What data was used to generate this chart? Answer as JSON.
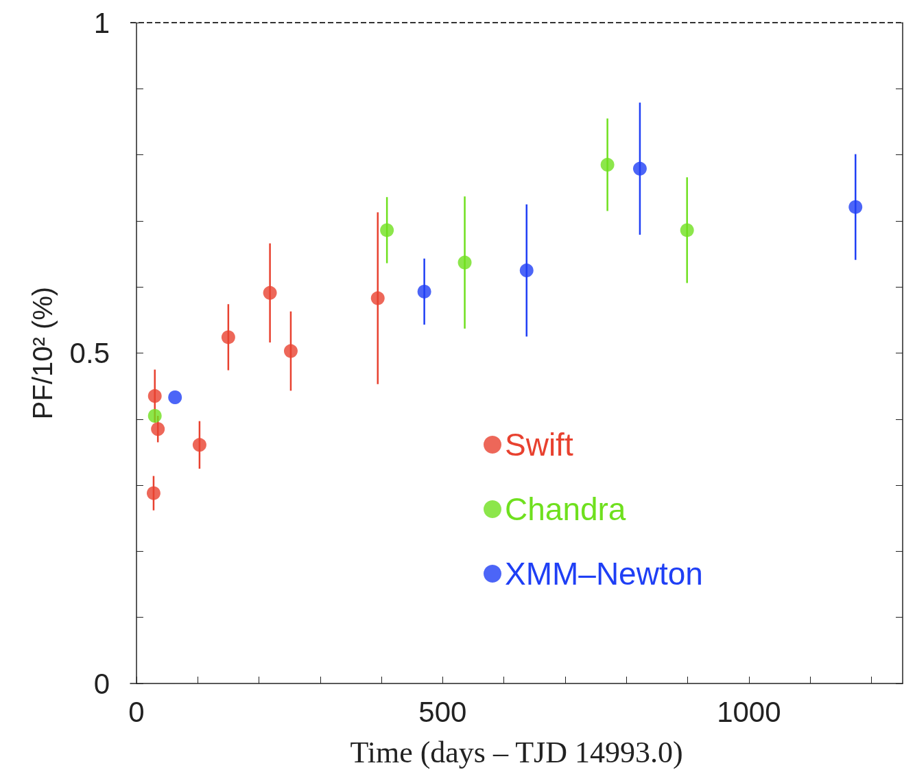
{
  "chart_data": {
    "type": "scatter",
    "xlabel": "Time (days – TJD 14993.0)",
    "ylabel": "PF/10² (%)",
    "xlim": [
      -10,
      1251
    ],
    "ylim": [
      0,
      1
    ],
    "xticks": [
      0,
      {
        "value": 100,
        "label": null
      },
      {
        "value": 200,
        "label": null
      },
      {
        "value": 300,
        "label": null
      },
      {
        "value": 400,
        "label": null
      },
      500,
      {
        "value": 600,
        "label": null
      },
      {
        "value": 700,
        "label": null
      },
      {
        "value": 800,
        "label": null
      },
      {
        "value": 900,
        "label": null
      },
      1000,
      {
        "value": 1100,
        "label": null
      },
      {
        "value": 1200,
        "label": null
      }
    ],
    "yticks": [
      0,
      {
        "value": 0.1,
        "label": null
      },
      {
        "value": 0.2,
        "label": null
      },
      {
        "value": 0.3,
        "label": null
      },
      {
        "value": 0.4,
        "label": null
      },
      0.5,
      {
        "value": 0.6,
        "label": null
      },
      {
        "value": 0.7,
        "label": null
      },
      {
        "value": 0.8,
        "label": null
      },
      {
        "value": 0.9,
        "label": null
      },
      1
    ],
    "grid": false,
    "legend": "bottom right",
    "marker": "circle",
    "ref_lines": [
      {
        "axis": "y",
        "value": 1,
        "line_style": "dashed",
        "color": "#333333"
      }
    ],
    "series": [
      {
        "name": "Swift",
        "color": "#e8412f",
        "x": [
          30,
          35,
          28,
          103,
          150,
          218,
          252,
          394
        ],
        "values": [
          0.435,
          0.385,
          0.288,
          0.361,
          0.524,
          0.591,
          0.503,
          0.583
        ],
        "errors": [
          0.04,
          0.02,
          0.026,
          0.036,
          0.05,
          0.075,
          0.06,
          0.13
        ]
      },
      {
        "name": "Chandra",
        "color": "#6fe01e",
        "x": [
          30,
          409,
          536,
          769,
          899
        ],
        "values": [
          0.405,
          0.686,
          0.637,
          0.785,
          0.686
        ],
        "errors": [
          null,
          0.05,
          0.1,
          0.07,
          0.08
        ]
      },
      {
        "name": "XMM–Newton",
        "color": "#1f3ff5",
        "x": [
          63,
          470,
          637,
          822,
          1174
        ],
        "values": [
          0.433,
          0.593,
          0.625,
          0.779,
          0.721
        ],
        "errors": [
          null,
          0.05,
          0.1,
          0.1,
          0.08
        ]
      }
    ]
  }
}
